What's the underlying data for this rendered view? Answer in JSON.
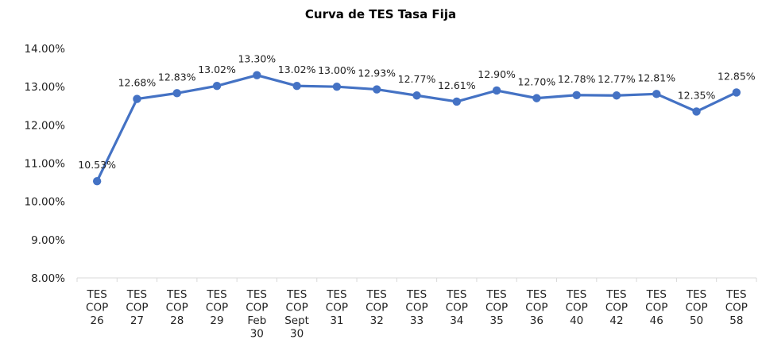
{
  "chart_data": {
    "type": "line",
    "title": "Curva de TES Tasa Fija",
    "xlabel": "",
    "ylabel": "",
    "categories": [
      [
        "TES",
        "COP",
        "26"
      ],
      [
        "TES",
        "COP",
        "27"
      ],
      [
        "TES",
        "COP",
        "28"
      ],
      [
        "TES",
        "COP",
        "29"
      ],
      [
        "TES",
        "COP",
        "Feb",
        "30"
      ],
      [
        "TES",
        "COP",
        "Sept",
        "30"
      ],
      [
        "TES",
        "COP",
        "31"
      ],
      [
        "TES",
        "COP",
        "32"
      ],
      [
        "TES",
        "COP",
        "33"
      ],
      [
        "TES",
        "COP",
        "34"
      ],
      [
        "TES",
        "COP",
        "35"
      ],
      [
        "TES",
        "COP",
        "36"
      ],
      [
        "TES",
        "COP",
        "40"
      ],
      [
        "TES",
        "COP",
        "42"
      ],
      [
        "TES",
        "COP",
        "46"
      ],
      [
        "TES",
        "COP",
        "50"
      ],
      [
        "TES",
        "COP",
        "58"
      ]
    ],
    "series": [
      {
        "values": [
          10.53,
          12.68,
          12.83,
          13.02,
          13.3,
          13.02,
          13.0,
          12.93,
          12.77,
          12.61,
          12.9,
          12.7,
          12.78,
          12.77,
          12.81,
          12.35,
          12.85
        ],
        "labels": [
          "10.53%",
          "12.68%",
          "12.83%",
          "13.02%",
          "13.30%",
          "13.02%",
          "13.00%",
          "12.93%",
          "12.77%",
          "12.61%",
          "12.90%",
          "12.70%",
          "12.78%",
          "12.77%",
          "12.81%",
          "12.35%",
          "12.85%"
        ],
        "color": "#4472C4"
      }
    ],
    "ylim": [
      8,
      14
    ],
    "yticks": [
      "8.00%",
      "9.00%",
      "10.00%",
      "11.00%",
      "12.00%",
      "13.00%",
      "14.00%"
    ],
    "grid": false,
    "legend": "none"
  }
}
